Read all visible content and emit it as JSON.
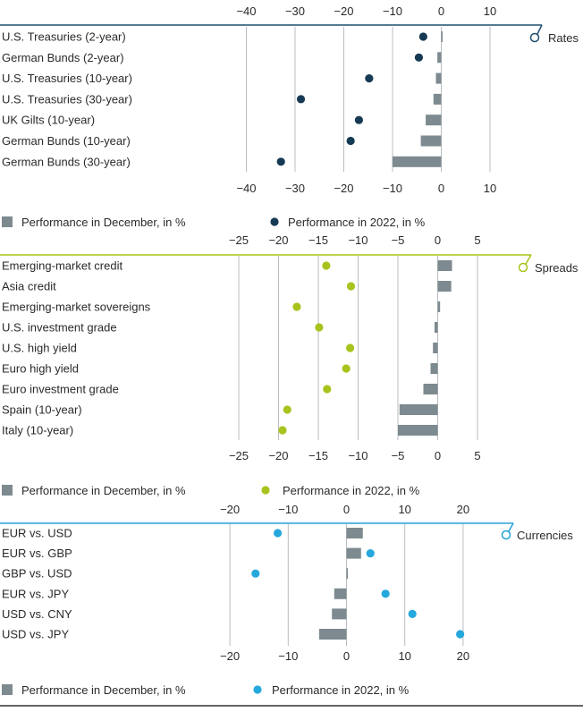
{
  "colors": {
    "bar": "#7d8a8f",
    "grid": "#b9bdbf",
    "text": "#2a2a2a",
    "rates_accent": "#1f4e6e",
    "rates_dot": "#163a54",
    "spreads_accent": "#a9c31a",
    "spreads_dot": "#a6c41d",
    "currencies_accent": "#22a3d6",
    "currencies_dot": "#25a8dc",
    "bottom_rule": "#333333"
  },
  "chart_data": [
    {
      "type": "bar",
      "id": "rates",
      "panel_label": "Rates",
      "xlim": [
        -40,
        15
      ],
      "ticks": [
        -40,
        -30,
        -20,
        -10,
        0,
        10
      ],
      "tick_labels": [
        "−40",
        "−30",
        "−20",
        "−10",
        "0",
        "10"
      ],
      "categories": [
        "U.S. Treasuries (2-year)",
        "German Bunds (2-year)",
        "U.S. Treasuries (10-year)",
        "U.S. Treasuries (30-year)",
        "UK Gilts (10-year)",
        "German Bunds (10-year)",
        "German Bunds (30-year)"
      ],
      "series": [
        {
          "name": "Performance in December, in %",
          "marker": "bar",
          "values": [
            0.2,
            -0.8,
            -1.1,
            -1.6,
            -3.2,
            -4.2,
            -10
          ]
        },
        {
          "name": "Performance in 2022, in %",
          "marker": "dot",
          "values": [
            -3.7,
            -4.6,
            -14.8,
            -28.8,
            -16.9,
            -18.6,
            -32.9
          ]
        }
      ]
    },
    {
      "type": "bar",
      "id": "spreads",
      "panel_label": "Spreads",
      "xlim": [
        -28,
        9
      ],
      "ticks": [
        -25,
        -20,
        -15,
        -10,
        -5,
        0,
        5
      ],
      "tick_labels": [
        "−25",
        "−20",
        "−15",
        "−10",
        "−5",
        "0",
        "5"
      ],
      "categories": [
        "Emerging-market credit",
        "Asia credit",
        "Emerging-market sovereigns",
        "U.S. investment grade",
        "U.S. high yield",
        "Euro high yield",
        "Euro investment grade",
        "Spain (10-year)",
        "Italy (10-year)"
      ],
      "series": [
        {
          "name": "Performance in December, in %",
          "marker": "bar",
          "values": [
            1.8,
            1.7,
            0.3,
            -0.4,
            -0.6,
            -0.9,
            -1.8,
            -4.8,
            -5
          ]
        },
        {
          "name": "Performance in 2022, in %",
          "marker": "dot",
          "values": [
            -14,
            -10.9,
            -17.7,
            -14.9,
            -11,
            -11.5,
            -13.9,
            -18.9,
            -19.5
          ]
        }
      ]
    },
    {
      "type": "bar",
      "id": "currencies",
      "panel_label": "Currencies",
      "xlim": [
        -24,
        28
      ],
      "ticks": [
        -20,
        -10,
        0,
        10,
        20
      ],
      "tick_labels": [
        "−20",
        "−10",
        "0",
        "10",
        "20"
      ],
      "categories": [
        "EUR vs. USD",
        "EUR vs. GBP",
        "GBP vs. USD",
        "EUR vs. JPY",
        "USD vs. CNY",
        "USD vs. JPY"
      ],
      "series": [
        {
          "name": "Performance in December, in %",
          "marker": "bar",
          "values": [
            2.8,
            2.5,
            0.2,
            -2.1,
            -2.5,
            -4.7
          ]
        },
        {
          "name": "Performance in 2022, in %",
          "marker": "dot",
          "values": [
            -11.8,
            4.1,
            -15.6,
            6.7,
            11.3,
            19.5
          ]
        }
      ]
    }
  ]
}
